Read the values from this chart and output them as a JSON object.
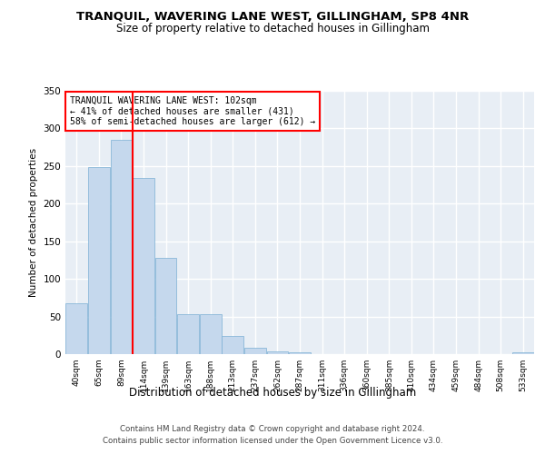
{
  "title": "TRANQUIL, WAVERING LANE WEST, GILLINGHAM, SP8 4NR",
  "subtitle": "Size of property relative to detached houses in Gillingham",
  "xlabel": "Distribution of detached houses by size in Gillingham",
  "ylabel": "Number of detached properties",
  "bar_color": "#c5d8ed",
  "bar_edge_color": "#7bafd4",
  "background_color": "#e8eef5",
  "grid_color": "#ffffff",
  "categories": [
    "40sqm",
    "65sqm",
    "89sqm",
    "114sqm",
    "139sqm",
    "163sqm",
    "188sqm",
    "213sqm",
    "237sqm",
    "262sqm",
    "287sqm",
    "311sqm",
    "336sqm",
    "360sqm",
    "385sqm",
    "410sqm",
    "434sqm",
    "459sqm",
    "484sqm",
    "508sqm",
    "533sqm"
  ],
  "values": [
    68,
    249,
    285,
    234,
    128,
    53,
    53,
    24,
    8,
    4,
    3,
    0,
    0,
    0,
    0,
    0,
    0,
    0,
    0,
    0,
    3
  ],
  "ylim": [
    0,
    350
  ],
  "yticks": [
    0,
    50,
    100,
    150,
    200,
    250,
    300,
    350
  ],
  "property_line_x": 2.5,
  "annotation_text": "TRANQUIL WAVERING LANE WEST: 102sqm\n← 41% of detached houses are smaller (431)\n58% of semi-detached houses are larger (612) →",
  "footer1": "Contains HM Land Registry data © Crown copyright and database right 2024.",
  "footer2": "Contains public sector information licensed under the Open Government Licence v3.0."
}
